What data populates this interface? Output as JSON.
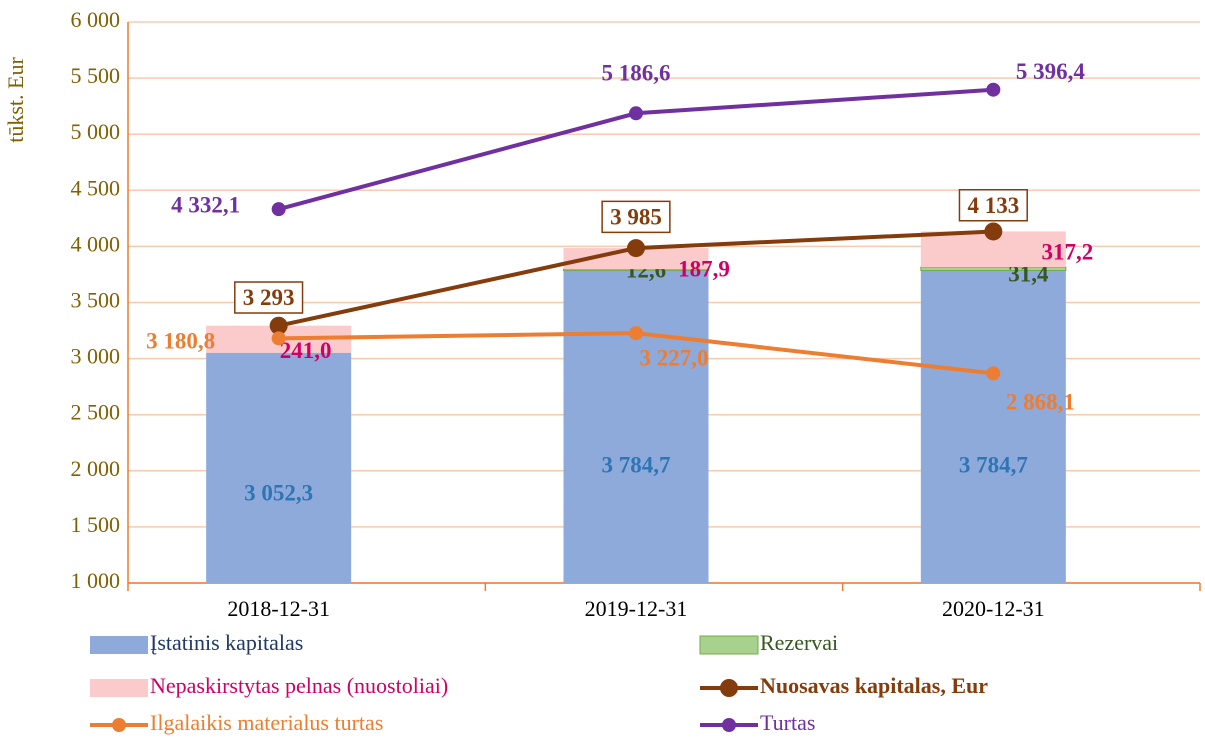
{
  "chart_data": {
    "type": "bar",
    "y_label": "tūkst. Eur",
    "categories": [
      "2018-12-31",
      "2019-12-31",
      "2020-12-31"
    ],
    "ylim": [
      1000,
      6000
    ],
    "yticks": [
      {
        "value": 1000,
        "label": "1 000"
      },
      {
        "value": 1500,
        "label": "1 500"
      },
      {
        "value": 2000,
        "label": "2 000"
      },
      {
        "value": 2500,
        "label": "2 500"
      },
      {
        "value": 3000,
        "label": "3 000"
      },
      {
        "value": 3500,
        "label": "3 500"
      },
      {
        "value": 4000,
        "label": "4 000"
      },
      {
        "value": 4500,
        "label": "4 500"
      },
      {
        "value": 5000,
        "label": "5 000"
      },
      {
        "value": 5500,
        "label": "5 500"
      },
      {
        "value": 6000,
        "label": "6 000"
      }
    ],
    "grid": true,
    "series": [
      {
        "name": "Įstatinis kapitalas",
        "type": "bar",
        "color": "#8eaadb",
        "label_color": "#2e75b6",
        "text_color": "#1f3864",
        "values": [
          3052.3,
          3784.7,
          3784.7
        ],
        "value_labels": [
          "3 052,3",
          "3 784,7",
          "3 784,7"
        ]
      },
      {
        "name": "Rezervai",
        "type": "bar",
        "color": "#a9d18e",
        "label_color": "#375623",
        "text_color": "#375623",
        "values": [
          null,
          12.6,
          31.4
        ],
        "value_labels": [
          null,
          "12,6",
          "31,4"
        ]
      },
      {
        "name": "Nepaskirstytas pelnas (nuostoliai)",
        "type": "bar",
        "color": "#fbcaca",
        "label_color": "#cc0066",
        "text_color": "#cc0066",
        "values": [
          241.0,
          187.9,
          317.2
        ],
        "value_labels": [
          "241,0",
          "187,9",
          "317,2"
        ]
      },
      {
        "name": "Nuosavas kapitalas, Eur",
        "type": "line",
        "color": "#843c0c",
        "label_color": "#843c0c",
        "text_color": "#843c0c",
        "bold": true,
        "boxed": true,
        "values": [
          3293,
          3985,
          4133
        ],
        "value_labels": [
          "3 293",
          "3 985",
          "4 133"
        ]
      },
      {
        "name": "Ilgalaikis materialus turtas",
        "type": "line",
        "color": "#ed7d31",
        "label_color": "#ed7d31",
        "text_color": "#ed7d31",
        "values": [
          3180.8,
          3227.0,
          2868.1
        ],
        "value_labels": [
          "3 180,8",
          "3 227,0",
          "2 868,1"
        ]
      },
      {
        "name": "Turtas",
        "type": "line",
        "color": "#7030a0",
        "label_color": "#7030a0",
        "text_color": "#7030a0",
        "values": [
          4332.1,
          5186.6,
          5396.4
        ],
        "value_labels": [
          "4 332,1",
          "5 186,6",
          "5 396,4"
        ]
      }
    ]
  }
}
